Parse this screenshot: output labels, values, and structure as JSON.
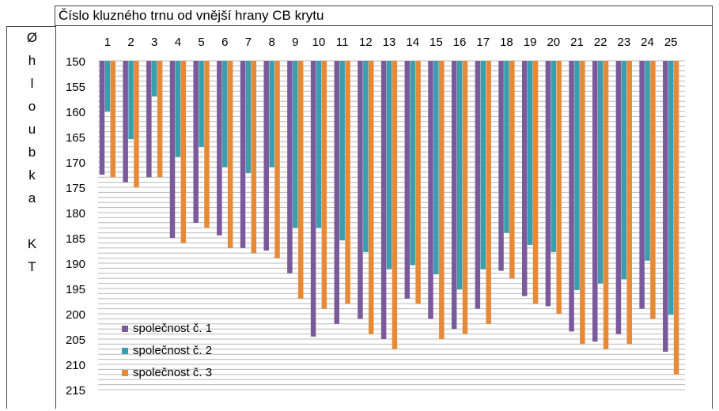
{
  "chart_data": {
    "type": "bar",
    "title": "Číslo kluzného trnu od vnější hrany CB krytu",
    "ylabel": "Ø hloubka KT",
    "ylabel_lines": [
      "Ø",
      "h",
      "l",
      "o",
      "u",
      "b",
      "k",
      "a",
      "",
      "K",
      "T"
    ],
    "y_axis": {
      "min": 150,
      "max": 215,
      "inverted": true,
      "ticks": [
        150,
        155,
        160,
        165,
        170,
        175,
        180,
        185,
        190,
        195,
        200,
        205,
        210,
        215
      ],
      "gridline_step": 1
    },
    "categories": [
      "1",
      "2",
      "3",
      "4",
      "5",
      "6",
      "7",
      "8",
      "9",
      "10",
      "11",
      "12",
      "13",
      "14",
      "15",
      "16",
      "17",
      "18",
      "19",
      "20",
      "21",
      "22",
      "23",
      "24",
      "25"
    ],
    "series": [
      {
        "name": "společnost č. 1",
        "color": "#7b5a9b",
        "values": [
          172.5,
          174,
          173,
          185,
          182,
          184.5,
          187,
          187.5,
          192,
          204.5,
          202,
          201,
          205,
          197,
          201,
          203,
          199,
          191.5,
          196.5,
          198.5,
          203.5,
          205.5,
          204,
          199,
          207.5
        ]
      },
      {
        "name": "společnost č. 2",
        "color": "#3a9eae",
        "values": [
          160,
          165.5,
          157,
          169,
          167,
          171,
          172.2,
          171,
          183,
          183,
          185.5,
          187.8,
          191.2,
          190.4,
          192.2,
          195.2,
          191.2,
          184,
          186.4,
          187.8,
          195.3,
          194,
          193.2,
          189.5,
          200.2
        ]
      },
      {
        "name": "společnost č. 3",
        "color": "#e78a38",
        "values": [
          173,
          175,
          173,
          186,
          183,
          187,
          188,
          189,
          197,
          199,
          198,
          204,
          207,
          198,
          205,
          204,
          202,
          193,
          198,
          200,
          206,
          207,
          206,
          201,
          212
        ]
      }
    ],
    "legend": {
      "position": "bottom-left"
    },
    "grid": true
  }
}
